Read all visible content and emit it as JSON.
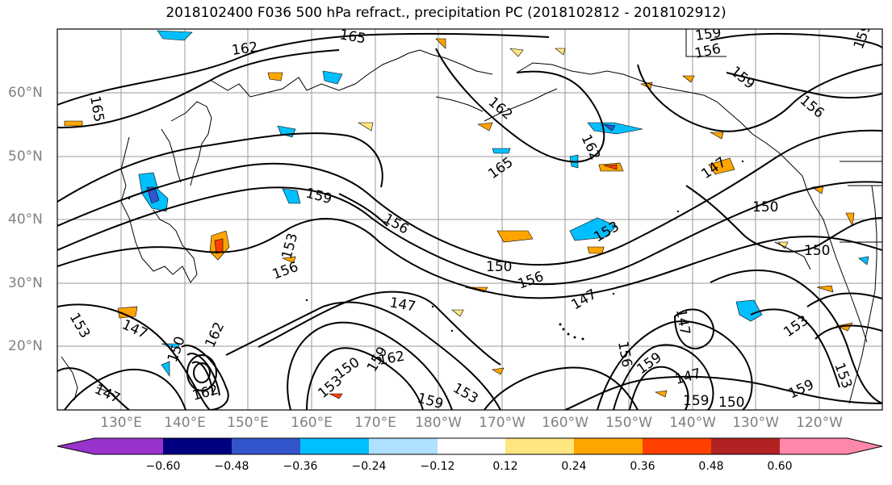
{
  "title": "2018102400 F036 500 hPa refract., precipitation PC (2018102812 - 2018102912)",
  "lat_labels": [
    "60°N",
    "50°N",
    "40°N",
    "30°N",
    "20°N"
  ],
  "lon_labels": [
    "130°E",
    "140°E",
    "150°E",
    "160°E",
    "170°E",
    "180°W",
    "170°W",
    "160°W",
    "150°W",
    "140°W",
    "130°W",
    "120°W"
  ],
  "colorbar": {
    "ticks": [
      "−0.60",
      "−0.48",
      "−0.36",
      "−0.24",
      "−0.12",
      "0.12",
      "0.24",
      "0.36",
      "0.48",
      "0.60"
    ],
    "colors": [
      "#9933cc",
      "#000080",
      "#3355cc",
      "#00bfff",
      "#b0e0ff",
      "#ffffff",
      "#ffe680",
      "#ffa500",
      "#ff4000",
      "#b22222",
      "#ff88aa"
    ]
  },
  "contour_labels": [
    "165",
    "162",
    "165",
    "159",
    "156",
    "159",
    "162",
    "162",
    "156",
    "165",
    "159",
    "159",
    "156",
    "150",
    "153",
    "153",
    "156",
    "150",
    "156",
    "147",
    "147",
    "147",
    "153",
    "147",
    "153",
    "150",
    "162",
    "150",
    "162",
    "159",
    "159",
    "153",
    "156",
    "159",
    "147",
    "159",
    "150",
    "159",
    "153",
    "153",
    "147",
    "162",
    "150",
    "147"
  ]
}
